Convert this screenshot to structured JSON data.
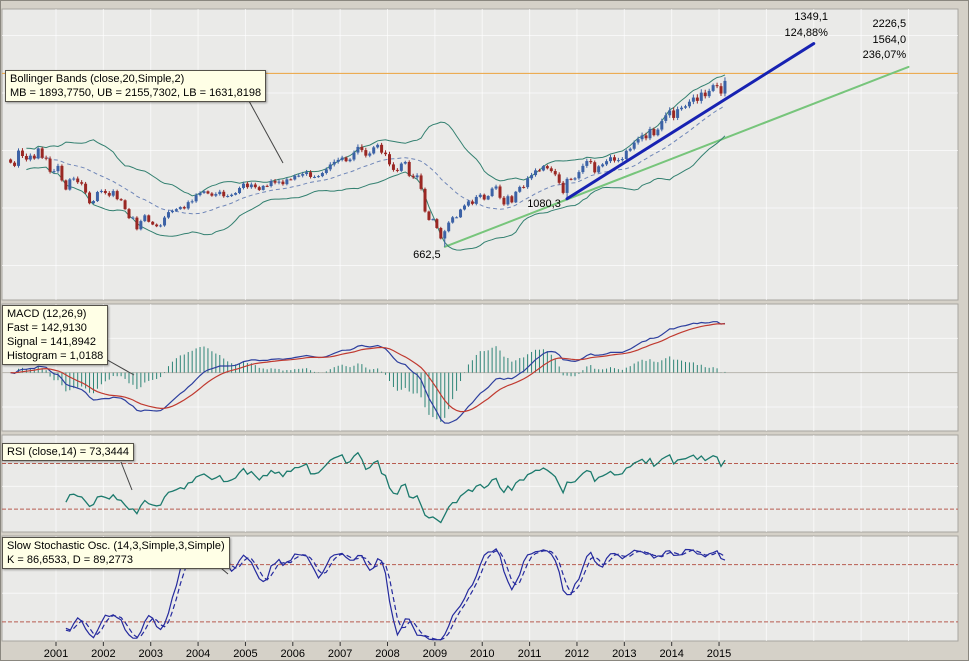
{
  "callouts": {
    "bollinger": {
      "line1": "Bollinger Bands (close,20,Simple,2)",
      "line2": "MB = 1893,7750, UB = 2155,7302, LB = 1631,8198"
    },
    "macd": {
      "line1": "MACD (12,26,9)",
      "line2": "Fast = 142,9130",
      "line3": "Signal = 141,8942",
      "line4": "Histogram = 1,0188"
    },
    "rsi": {
      "line1": "RSI (close,14) = 73,3444"
    },
    "stoch": {
      "line1": "Slow Stochastic Osc. (14,3,Simple,3,Simple)",
      "line2": "K = 86,6533, D = 89,2773"
    }
  },
  "xaxis": {
    "years": [
      "2001",
      "2002",
      "2003",
      "2004",
      "2005",
      "2006",
      "2007",
      "2008",
      "2009",
      "2010",
      "2011",
      "2012",
      "2013",
      "2014",
      "2015"
    ]
  },
  "colors": {
    "window_bg": "#d5d1c8",
    "panel_bg": "#eaeae8",
    "panel_border": "#a8a59f",
    "grid": "#ffffff",
    "candle_up": "#3c62a6",
    "candle_down": "#9a2723",
    "bollinger_band": "#338070",
    "bollinger_mid": "#6f86b8",
    "macd_line": "#2d3f9e",
    "macd_signal": "#c03a30",
    "macd_hist": "#2e8577",
    "rsi_line": "#1c7a6d",
    "stoch_line": "#252a9e",
    "level_red": "#b85c50",
    "hline_orange": "#eca33e",
    "trend_blue": "#1722b2",
    "trend_green": "#77c57b",
    "text": "#000000"
  },
  "chart_data": {
    "type": "candlestick+indicators",
    "panels": [
      "price with Bollinger Bands and trendlines",
      "MACD(12,26,9)",
      "RSI(close,14)",
      "Slow Stochastic (14,3,Simple,3,Simple)"
    ],
    "start_month": "2000-01",
    "monthly_closes": [
      1394,
      1366,
      1499,
      1452,
      1421,
      1455,
      1431,
      1518,
      1437,
      1429,
      1315,
      1320,
      1366,
      1240,
      1160,
      1249,
      1256,
      1224,
      1211,
      1134,
      1041,
      1060,
      1139,
      1148,
      1130,
      1107,
      1147,
      1077,
      1067,
      990,
      912,
      916,
      815,
      886,
      936,
      880,
      856,
      841,
      848,
      917,
      964,
      975,
      990,
      1008,
      996,
      1051,
      1058,
      1112,
      1131,
      1145,
      1126,
      1107,
      1121,
      1141,
      1102,
      1104,
      1115,
      1130,
      1174,
      1212,
      1181,
      1204,
      1181,
      1157,
      1192,
      1191,
      1234,
      1220,
      1229,
      1207,
      1249,
      1248,
      1280,
      1281,
      1295,
      1311,
      1270,
      1270,
      1277,
      1304,
      1336,
      1378,
      1401,
      1418,
      1438,
      1407,
      1421,
      1482,
      1531,
      1503,
      1455,
      1474,
      1527,
      1549,
      1481,
      1468,
      1379,
      1331,
      1323,
      1386,
      1400,
      1280,
      1267,
      1283,
      1166,
      969,
      896,
      903,
      826,
      735,
      798,
      873,
      919,
      919,
      987,
      1021,
      1057,
      1036,
      1096,
      1115,
      1074,
      1104,
      1169,
      1187,
      1089,
      1031,
      1102,
      1049,
      1141,
      1183,
      1181,
      1258,
      1286,
      1327,
      1326,
      1364,
      1345,
      1321,
      1292,
      1219,
      1131,
      1253,
      1247,
      1258,
      1312,
      1366,
      1408,
      1398,
      1310,
      1362,
      1379,
      1407,
      1441,
      1412,
      1416,
      1426,
      1498,
      1515,
      1569,
      1598,
      1631,
      1606,
      1686,
      1633,
      1682,
      1757,
      1806,
      1848,
      1783,
      1859,
      1872,
      1884,
      1924,
      1960,
      1931,
      2003,
      1972,
      2018,
      2068,
      2059,
      1995,
      2105
    ],
    "low_overrides": {
      "2009-03": 662.5,
      "2011-10": 1080.3
    },
    "indicators": {
      "bollinger": {
        "source": "close",
        "period": 20,
        "type": "Simple",
        "mult": 2,
        "MB": 1893.775,
        "UB": 2155.7302,
        "LB": 1631.8198
      },
      "macd": {
        "fast_period": 12,
        "slow_period": 26,
        "signal_period": 9,
        "fast": 142.913,
        "signal": 141.8942,
        "histogram": 1.0188
      },
      "rsi": {
        "source": "close",
        "period": 14,
        "value": 73.3444
      },
      "stoch": {
        "k_period": 14,
        "k_smooth": 3,
        "k_type": "Simple",
        "d_period": 3,
        "d_type": "Simple",
        "k": 86.6533,
        "d": 89.2773
      }
    },
    "trendlines": [
      {
        "name": "trendline-blue-projection",
        "color_key": "trend_blue",
        "width": 3,
        "t1": 2011.79,
        "v1": 1080.3,
        "t2": 2017.0,
        "v2": 2429.4,
        "gain_points": 1349.1,
        "gain_percent": "124,88%"
      },
      {
        "name": "trendline-green-projection",
        "color_key": "trend_green",
        "width": 2,
        "t1": 2009.21,
        "v1": 662.5,
        "t2": 2019.0,
        "v2": 2226.5,
        "gain_points": 1564.0,
        "gain_percent": "236,07%"
      }
    ],
    "hline": {
      "value": 2170,
      "color_key": "hline_orange"
    },
    "annotations": [
      {
        "text": "1349,1",
        "t": 2017.3,
        "v": 2635,
        "anchor": "end"
      },
      {
        "text": "124,88%",
        "t": 2017.3,
        "v": 2495,
        "anchor": "end"
      },
      {
        "text": "2226,5",
        "t": 2018.95,
        "v": 2575,
        "anchor": "end"
      },
      {
        "text": "1564,0",
        "t": 2018.95,
        "v": 2434,
        "anchor": "end"
      },
      {
        "text": "236,07%",
        "t": 2018.95,
        "v": 2304,
        "anchor": "end"
      },
      {
        "text": "1080,3",
        "t": 2011.66,
        "v": 1009,
        "anchor": "end"
      },
      {
        "text": "662,5",
        "t": 2008.54,
        "v": 565,
        "anchor": "start"
      }
    ],
    "rsi_levels": [
      70,
      30
    ],
    "stoch_levels": [
      80,
      20
    ],
    "ylims": {
      "price": [
        200,
        2730
      ],
      "macd": [
        -170,
        200
      ],
      "rsi": [
        10,
        95
      ],
      "stoch": [
        0,
        110
      ]
    },
    "x_range_years": [
      2000,
      2019.1
    ],
    "grid": "on",
    "legend_position": "floating-callouts-top-left-of-each-panel"
  }
}
